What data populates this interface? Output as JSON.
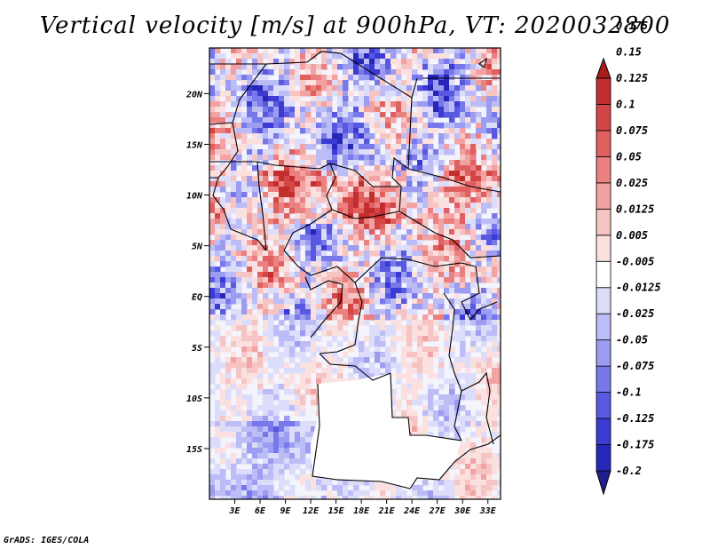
{
  "title": "Vertical velocity [m/s] at 900hPa, VT: 2020032800",
  "credit": "GrADS: IGES/COLA",
  "map": {
    "lat_range": [
      -20,
      24.5
    ],
    "lon_range": [
      0,
      34.5
    ],
    "lat_ticks": [
      {
        "value": 20,
        "label": "20N"
      },
      {
        "value": 15,
        "label": "15N"
      },
      {
        "value": 10,
        "label": "10N"
      },
      {
        "value": 5,
        "label": "5N"
      },
      {
        "value": 0,
        "label": "EQ"
      },
      {
        "value": -5,
        "label": "5S"
      },
      {
        "value": -10,
        "label": "10S"
      },
      {
        "value": -15,
        "label": "15S"
      }
    ],
    "lon_ticks": [
      {
        "value": 3,
        "label": "3E"
      },
      {
        "value": 6,
        "label": "6E"
      },
      {
        "value": 9,
        "label": "9E"
      },
      {
        "value": 12,
        "label": "12E"
      },
      {
        "value": 15,
        "label": "15E"
      },
      {
        "value": 18,
        "label": "18E"
      },
      {
        "value": 21,
        "label": "21E"
      },
      {
        "value": 24,
        "label": "24E"
      },
      {
        "value": 27,
        "label": "27E"
      },
      {
        "value": 30,
        "label": "30E"
      },
      {
        "value": 33,
        "label": "33E"
      }
    ]
  },
  "colorbar": {
    "colors": [
      "#1f1f8f",
      "#2626b8",
      "#3b3bd4",
      "#5858e0",
      "#7878ea",
      "#9c9cf1",
      "#bcbcf7",
      "#dcdcfb",
      "#ffffff",
      "#fbe0e0",
      "#f7c4c4",
      "#f2a2a2",
      "#eb8080",
      "#e06060",
      "#d44646",
      "#c22e2e",
      "#a81c1c"
    ],
    "labels": [
      "-0.2",
      "-0.175",
      "-0.125",
      "-0.1",
      "-0.075",
      "-0.05",
      "-0.025",
      "-0.0125",
      "-0.005",
      "0.005",
      "0.0125",
      "0.025",
      "0.05",
      "0.075",
      "0.1",
      "0.125",
      "0.15",
      "0.175"
    ]
  }
}
